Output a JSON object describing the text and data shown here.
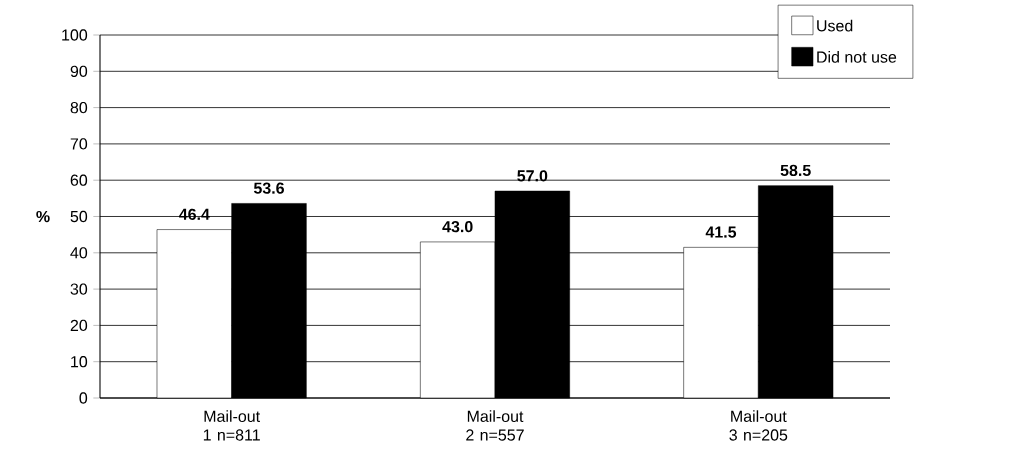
{
  "chart_data": {
    "type": "bar",
    "ylabel": "%",
    "categories": [
      "Mail-out 1 n=811",
      "Mail-out 2 n=557",
      "Mail-out 3 n=205"
    ],
    "series": [
      {
        "name": "Used",
        "color": "#ffffff",
        "values": [
          46.4,
          43.0,
          41.5
        ],
        "value_labels": [
          "46.4",
          "43.0",
          "41.5"
        ]
      },
      {
        "name": "Did not use",
        "color": "#000000",
        "values": [
          53.6,
          57.0,
          58.5
        ],
        "value_labels": [
          "53.6",
          "57.0",
          "58.5"
        ]
      }
    ],
    "ylim": [
      0,
      100
    ],
    "yticks": [
      0,
      10,
      20,
      30,
      40,
      50,
      60,
      70,
      80,
      90,
      100
    ],
    "grid": "y",
    "legend": "top right"
  }
}
